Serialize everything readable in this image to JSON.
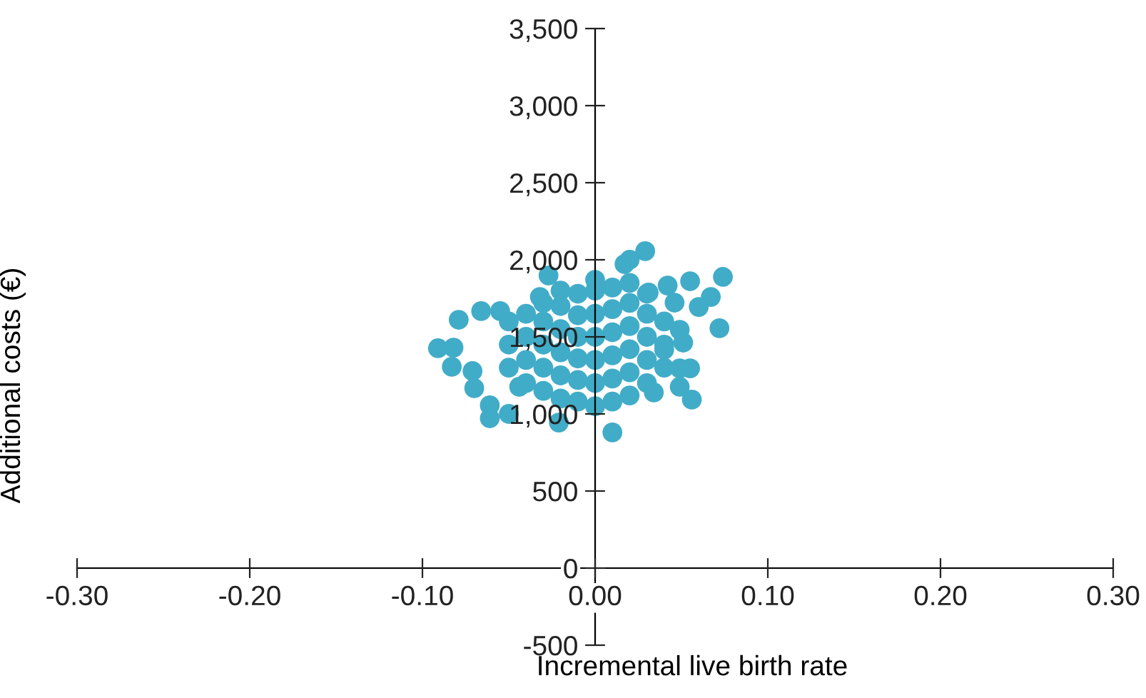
{
  "chart_data": {
    "type": "scatter",
    "xlabel": "Incremental live birth rate",
    "ylabel": "Additional costs (€)",
    "xlim": [
      -0.3,
      0.3
    ],
    "xticks": [
      {
        "value": -0.3,
        "label": "-0.30"
      },
      {
        "value": -0.2,
        "label": "-0.20"
      },
      {
        "value": -0.1,
        "label": "-0.10"
      },
      {
        "value": 0,
        "label": "0.00"
      },
      {
        "value": 0.1,
        "label": "0.10"
      },
      {
        "value": 0.2,
        "label": "0.20"
      },
      {
        "value": 0.3,
        "label": "0.30"
      }
    ],
    "ylim": [
      -500,
      3500
    ],
    "yticks": [
      {
        "value": -500,
        "label": "-500"
      },
      0,
      500,
      {
        "value": 1000,
        "label": "1,000"
      },
      {
        "value": 1500,
        "label": "1,500"
      },
      {
        "value": 2000,
        "label": "2,000"
      },
      {
        "value": 2500,
        "label": "2,500"
      },
      {
        "value": 3000,
        "label": "3,000"
      },
      {
        "value": 3500,
        "label": "3,500"
      }
    ],
    "grid": false,
    "legend": false,
    "marker": "circle",
    "series": [
      {
        "color": "#41acc8",
        "x": [
          -0.091,
          -0.082,
          -0.083,
          -0.079,
          -0.066,
          -0.071,
          -0.07,
          -0.061,
          -0.061,
          -0.05,
          -0.021,
          0.01,
          0.029,
          0.02,
          0.017,
          0.042,
          0.055,
          0.074,
          0.067,
          0.046,
          0.06,
          0.072,
          0.049,
          0.051,
          0.04,
          0.049,
          0.055,
          0.049,
          0.056,
          0.034,
          0.031,
          -0.027,
          -0.032,
          -0.055,
          -0.044,
          -0.05,
          -0.05,
          -0.05,
          -0.04,
          -0.04,
          -0.04,
          -0.04,
          -0.03,
          -0.03,
          -0.03,
          -0.03,
          -0.03,
          -0.02,
          -0.02,
          -0.02,
          -0.02,
          -0.02,
          -0.02,
          -0.01,
          -0.01,
          -0.01,
          -0.01,
          -0.01,
          -0.01,
          0.0,
          0.0,
          0.0,
          0.0,
          0.0,
          0.0,
          0.0,
          0.01,
          0.01,
          0.01,
          0.01,
          0.01,
          0.01,
          0.02,
          0.02,
          0.02,
          0.02,
          0.02,
          0.02,
          0.03,
          0.03,
          0.03,
          0.03,
          0.03,
          0.04,
          0.04,
          0.04
        ],
        "values": [
          1426,
          1430,
          1306,
          1611,
          1667,
          1278,
          1167,
          1056,
          972,
          1000,
          944,
          880,
          2056,
          2000,
          1972,
          1833,
          1861,
          1889,
          1759,
          1722,
          1694,
          1556,
          1546,
          1463,
          1417,
          1296,
          1296,
          1176,
          1093,
          1139,
          1787,
          1898,
          1759,
          1667,
          1176,
          1300,
          1450,
          1600,
          1200,
          1350,
          1500,
          1650,
          1150,
          1300,
          1450,
          1600,
          1720,
          1100,
          1250,
          1400,
          1550,
          1700,
          1800,
          1080,
          1220,
          1360,
          1500,
          1640,
          1780,
          1050,
          1200,
          1350,
          1500,
          1650,
          1800,
          1870,
          1080,
          1230,
          1380,
          1530,
          1680,
          1820,
          1120,
          1270,
          1420,
          1570,
          1720,
          1850,
          1200,
          1350,
          1500,
          1650,
          1780,
          1300,
          1450,
          1600
        ]
      }
    ]
  }
}
